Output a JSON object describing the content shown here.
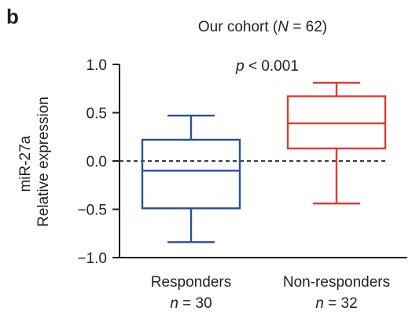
{
  "panel_label": "b",
  "chart_data": {
    "type": "box",
    "title": {
      "prefix": "Our cohort (",
      "var": "N",
      "eq": " = 62)"
    },
    "annotation": {
      "var": "p",
      "rest": " < 0.001"
    },
    "ylabel_line1": "miR-27a",
    "ylabel_line2": "Relative expression",
    "ylim": [
      -1.0,
      1.0
    ],
    "yticks": [
      "1.0",
      "0.5",
      "0.0",
      "−0.5",
      "−1.0"
    ],
    "ytick_values": [
      1.0,
      0.5,
      0.0,
      -0.5,
      -1.0
    ],
    "reference_line": {
      "y": 0.0,
      "style": "dashed"
    },
    "groups": [
      {
        "name": "Responders",
        "n_var": "n",
        "n_text": " = 30",
        "color": "#2a4f9a",
        "whisker_low": -0.84,
        "q1": -0.49,
        "median": -0.1,
        "q3": 0.22,
        "whisker_high": 0.47
      },
      {
        "name": "Non-responders",
        "n_var": "n",
        "n_text": " = 32",
        "color": "#e23b2f",
        "whisker_low": -0.44,
        "q1": 0.13,
        "median": 0.39,
        "q3": 0.67,
        "whisker_high": 0.81
      }
    ]
  }
}
